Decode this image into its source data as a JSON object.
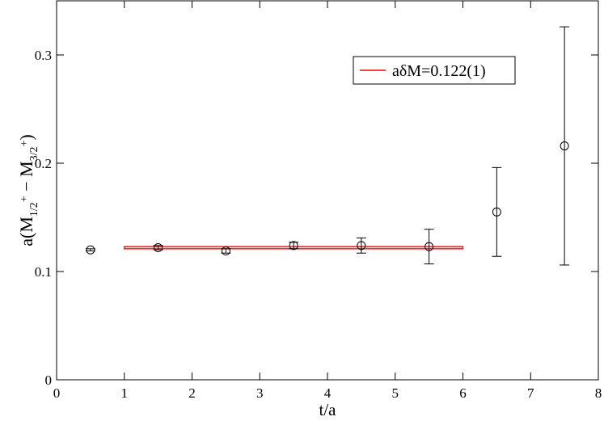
{
  "chart_data": {
    "type": "scatter",
    "xlabel": "t/a",
    "ylabel": {
      "parts": [
        "a(M",
        "1/2",
        "+",
        " − M",
        "3/2",
        "+",
        ")"
      ]
    },
    "xlim": [
      0,
      8
    ],
    "xticks": [
      0,
      1,
      2,
      3,
      4,
      5,
      6,
      7,
      8
    ],
    "ylim": [
      0,
      0.35
    ],
    "yticks": [
      0,
      0.1,
      0.2,
      0.3
    ],
    "legend": "upper right",
    "series": [
      {
        "color": "#000000",
        "x": [
          0.5,
          1.5,
          2.5,
          3.5,
          4.5,
          5.5,
          6.5,
          7.5
        ],
        "values": [
          0.12,
          0.122,
          0.119,
          0.124,
          0.124,
          0.123,
          0.155,
          0.216
        ],
        "errors": [
          0.001,
          0.002,
          0.002,
          0.003,
          0.007,
          0.016,
          0.041,
          0.11
        ]
      }
    ],
    "fit": {
      "name": "aδM=0.122(1)",
      "color": "#ff0000",
      "x": [
        1,
        6
      ],
      "value": 0.122,
      "error": 0.001
    }
  }
}
